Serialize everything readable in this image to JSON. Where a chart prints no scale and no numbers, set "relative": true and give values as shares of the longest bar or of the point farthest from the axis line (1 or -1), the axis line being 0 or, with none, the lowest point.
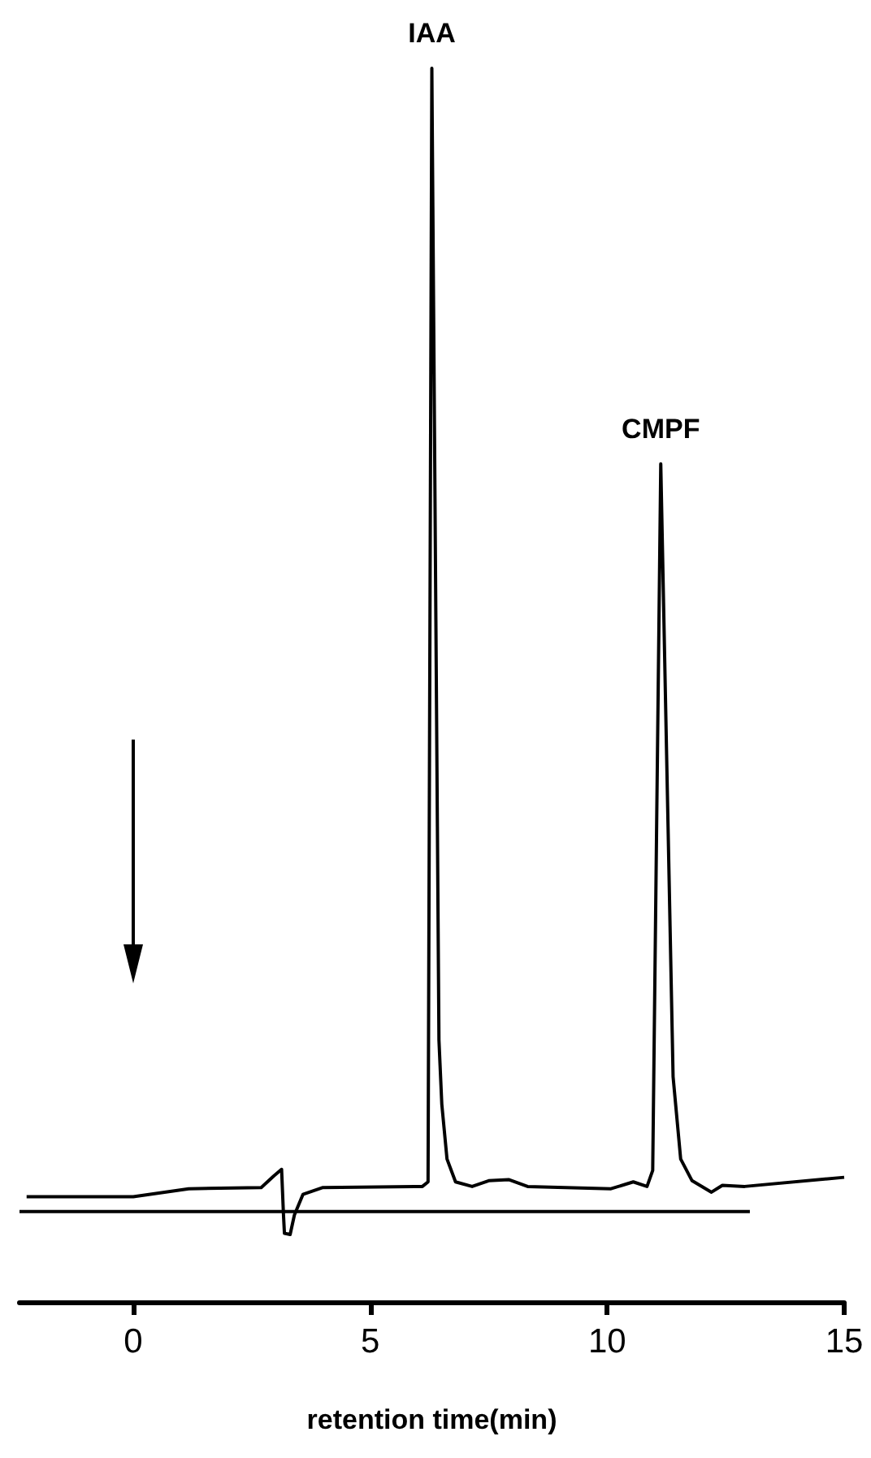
{
  "chart_data": {
    "type": "line",
    "relative": true,
    "xlabel": "retention time(min)",
    "xlim": [
      -2.4,
      15
    ],
    "xticks": [
      0,
      5,
      10,
      15
    ],
    "tick_labels": "x",
    "grid": false,
    "annotations": [
      {
        "text": "IAA",
        "x": 6.3,
        "y": 1
      },
      {
        "text": "CMPF",
        "x": 11.13,
        "y": 0.654
      }
    ],
    "series": [
      {
        "color": "#000000",
        "x": [
          -2.25,
          0,
          1.17,
          2.7,
          2.96,
          3.13,
          3.17,
          3.19,
          3.31,
          3.4,
          3.58,
          3.99,
          6.1,
          6.22,
          6.3,
          6.45,
          6.51,
          6.62,
          6.8,
          7.15,
          7.5,
          7.92,
          8.32,
          10.08,
          10.55,
          10.84,
          10.96,
          11.13,
          11.39,
          11.55,
          11.79,
          12.2,
          12.43,
          12.9,
          15
        ],
        "values": [
          0.013,
          0.013,
          0.02,
          0.021,
          0.031,
          0.037,
          -0.003,
          -0.019,
          -0.02,
          -0.003,
          0.015,
          0.021,
          0.022,
          0.026,
          1,
          0.15,
          0.094,
          0.046,
          0.026,
          0.022,
          0.027,
          0.028,
          0.022,
          0.02,
          0.026,
          0.022,
          0.036,
          0.654,
          0.118,
          0.046,
          0.027,
          0.017,
          0.023,
          0.022,
          0.03
        ]
      },
      {
        "color": "#000000",
        "x": [
          -2.4,
          13.01
        ],
        "values": [
          0,
          0
        ]
      }
    ]
  }
}
